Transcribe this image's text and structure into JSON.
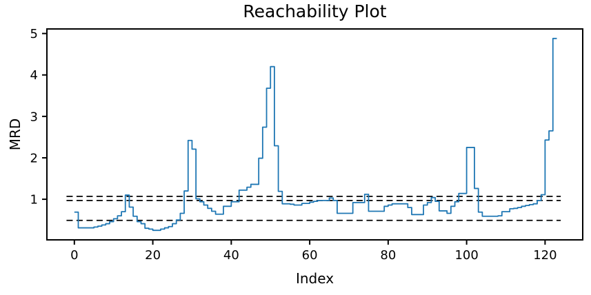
{
  "chart_data": {
    "type": "line",
    "step": "post",
    "title": "Reachability Plot",
    "xlabel": "Index",
    "ylabel": "MRD",
    "x_start": 0,
    "series": [
      {
        "name": "reachability",
        "color": "#1f77b4",
        "values": [
          0.69,
          0.31,
          0.31,
          0.31,
          0.31,
          0.33,
          0.35,
          0.38,
          0.41,
          0.46,
          0.53,
          0.6,
          0.7,
          1.1,
          0.81,
          0.59,
          0.46,
          0.41,
          0.3,
          0.28,
          0.25,
          0.25,
          0.28,
          0.31,
          0.34,
          0.41,
          0.5,
          0.66,
          1.2,
          2.42,
          2.21,
          1.01,
          0.94,
          0.86,
          0.78,
          0.71,
          0.64,
          0.64,
          0.83,
          0.83,
          0.94,
          0.94,
          1.22,
          1.22,
          1.29,
          1.36,
          1.36,
          1.99,
          2.74,
          3.68,
          4.2,
          2.29,
          1.19,
          0.89,
          0.89,
          0.88,
          0.86,
          0.86,
          0.9,
          0.9,
          0.93,
          0.95,
          0.97,
          0.97,
          0.97,
          1.03,
          0.97,
          0.66,
          0.66,
          0.66,
          0.66,
          0.92,
          0.92,
          0.92,
          1.12,
          0.71,
          0.71,
          0.71,
          0.71,
          0.83,
          0.86,
          0.89,
          0.89,
          0.89,
          0.89,
          0.8,
          0.63,
          0.63,
          0.63,
          0.86,
          0.92,
          1.04,
          0.95,
          0.72,
          0.72,
          0.66,
          0.83,
          0.94,
          1.14,
          1.14,
          2.25,
          2.25,
          1.26,
          0.69,
          0.59,
          0.59,
          0.59,
          0.59,
          0.6,
          0.7,
          0.7,
          0.77,
          0.78,
          0.8,
          0.83,
          0.85,
          0.87,
          0.89,
          0.97,
          1.11,
          2.43,
          2.65,
          4.88
        ]
      }
    ],
    "thresholds": {
      "style": "dashed",
      "color": "#000000",
      "values": [
        1.07,
        0.97,
        0.49
      ],
      "x_range": [
        -2,
        124
      ]
    },
    "xlim": [
      -7,
      129.6
    ],
    "ylim": [
      0.02,
      5.11
    ],
    "xticks": [
      0,
      20,
      40,
      60,
      80,
      100,
      120
    ],
    "yticks": [
      1,
      2,
      3,
      4,
      5
    ],
    "grid": false
  }
}
